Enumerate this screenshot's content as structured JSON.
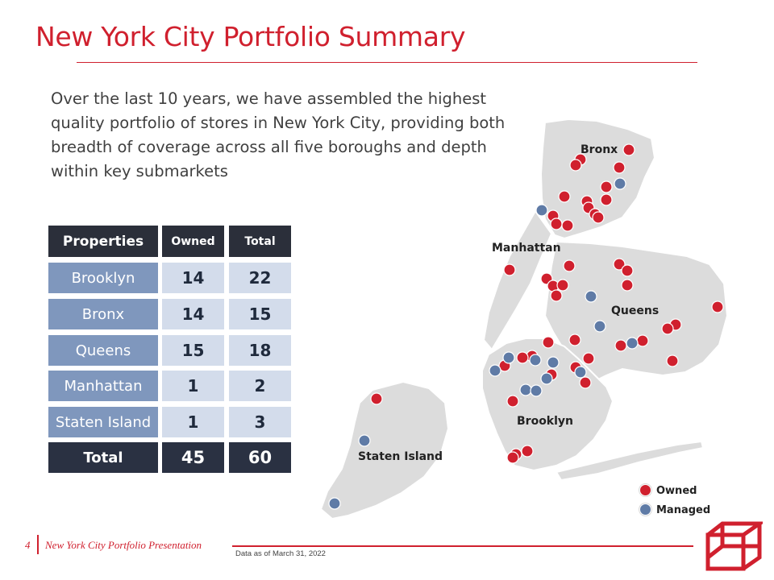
{
  "title": "New York City Portfolio Summary",
  "intro": "Over the last 10 years, we have assembled the highest quality portfolio of stores in New York City, providing both breadth of coverage across all five boroughs and depth within key submarkets",
  "table": {
    "headers": [
      "Properties",
      "Owned",
      "Total"
    ],
    "rows": [
      {
        "label": "Brooklyn",
        "owned": "14",
        "total": "22"
      },
      {
        "label": "Bronx",
        "owned": "14",
        "total": "15"
      },
      {
        "label": "Queens",
        "owned": "15",
        "total": "18"
      },
      {
        "label": "Manhattan",
        "owned": "1",
        "total": "2"
      },
      {
        "label": "Staten Island",
        "owned": "1",
        "total": "3"
      }
    ],
    "total": {
      "label": "Total",
      "owned": "45",
      "total": "60"
    }
  },
  "map": {
    "labels": {
      "bronx": "Bronx",
      "manhattan": "Manhattan",
      "queens": "Queens",
      "brooklyn": "Brooklyn",
      "staten_island": "Staten Island"
    },
    "colors": {
      "owned": "#d0202e",
      "managed": "#5f7ba6",
      "land": "#dcdcdc"
    }
  },
  "legend": {
    "owned": "Owned",
    "managed": "Managed"
  },
  "footer": {
    "page_number": "4",
    "presentation_title": "New York City Portfolio Presentation",
    "note": "Data as of March 31, 2022"
  }
}
